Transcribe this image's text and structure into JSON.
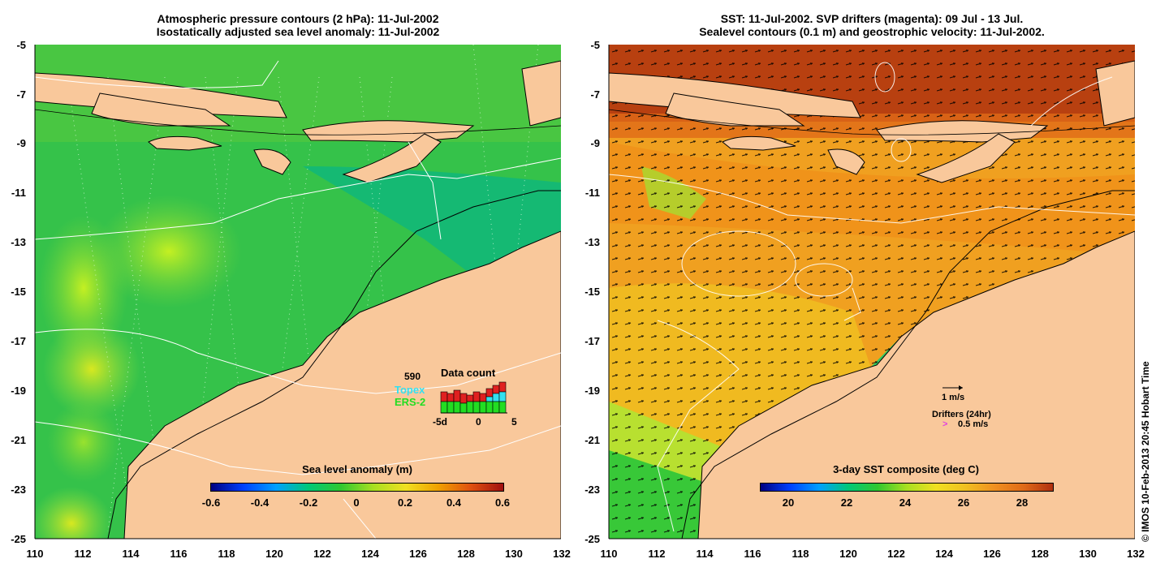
{
  "left_panel": {
    "title_line1": "Atmospheric pressure contours (2 hPa): 11-Jul-2002",
    "title_line2": "Isostatically adjusted sea level anomaly: 11-Jul-2002",
    "colorbar": {
      "title": "Sea level anomaly (m)",
      "ticks": [
        "-0.6",
        "-0.4",
        "-0.2",
        "0",
        "0.2",
        "0.4",
        "0.6"
      ],
      "range": [
        -0.6,
        0.6
      ]
    },
    "data_count": {
      "title": "Data count",
      "total_label": "590",
      "legend": [
        {
          "label": "Topex",
          "color": "#33e0f0"
        },
        {
          "label": "ERS-2",
          "color": "#22dd22"
        }
      ],
      "axis_ticks": [
        "-5d",
        "0",
        "5"
      ]
    }
  },
  "right_panel": {
    "title_line1": "SST: 11-Jul-2002. SVP drifters (magenta): 09 Jul - 13 Jul.",
    "title_line2": "Sealevel contours (0.1 m) and geostrophic velocity: 11-Jul-2002.",
    "colorbar": {
      "title": "3-day SST composite (deg C)",
      "ticks": [
        "20",
        "22",
        "24",
        "26",
        "28"
      ],
      "range": [
        19,
        29
      ]
    },
    "velocity_scale_label": "1 m/s",
    "drifters_label": "Drifters (24hr)",
    "drifters_scale_label": "0.5 m/s"
  },
  "axes": {
    "lat_labels": [
      "-5",
      "-7",
      "-9",
      "-11",
      "-13",
      "-15",
      "-17",
      "-19",
      "-21",
      "-23",
      "-25"
    ],
    "lon_labels": [
      "110",
      "112",
      "114",
      "116",
      "118",
      "120",
      "122",
      "124",
      "126",
      "128",
      "130",
      "132"
    ]
  },
  "credit": "© IMOS 10-Feb-2013 20:45 Hobart Time",
  "colors": {
    "land": "#f9c89b",
    "ocean_left": "#1fbb5a",
    "ocean_right": "#f0a020"
  }
}
